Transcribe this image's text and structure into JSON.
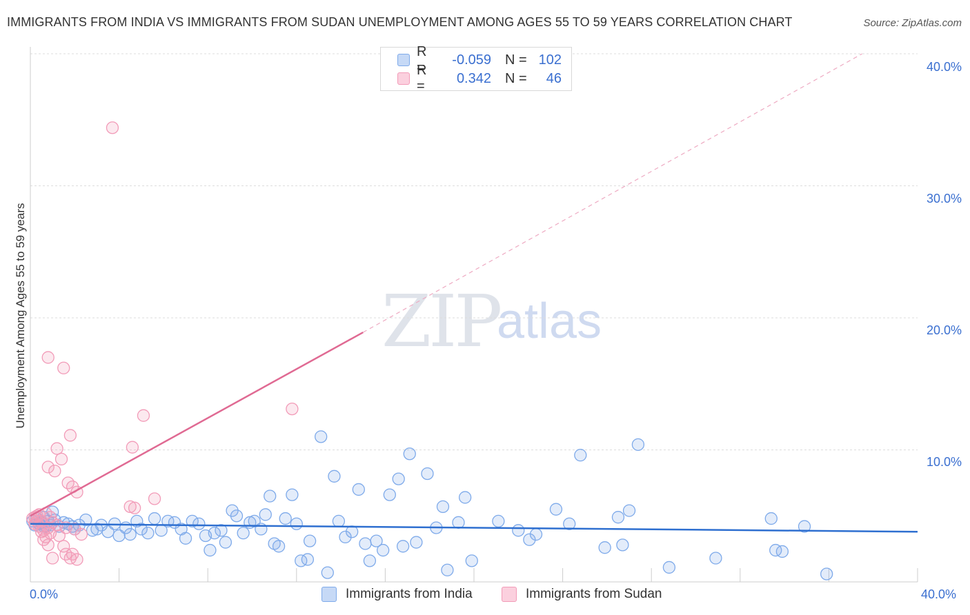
{
  "header": {
    "title": "IMMIGRANTS FROM INDIA VS IMMIGRANTS FROM SUDAN UNEMPLOYMENT AMONG AGES 55 TO 59 YEARS CORRELATION CHART",
    "source": "Source: ZipAtlas.com"
  },
  "watermark": {
    "zip": "ZIP",
    "atlas": "atlas"
  },
  "stats_legend": {
    "rows": [
      {
        "r_label": "R =",
        "r_value": "-0.059",
        "n_label": "N =",
        "n_value": "102",
        "color": "#7eaaea"
      },
      {
        "r_label": "R =",
        "r_value": "0.342",
        "n_label": "N =",
        "n_value": "46",
        "color": "#f29bb8"
      }
    ]
  },
  "chart_data": {
    "type": "scatter",
    "xlabel": "",
    "ylabel": "Unemployment Among Ages 55 to 59 years",
    "xlim": [
      0,
      40
    ],
    "ylim": [
      0,
      40
    ],
    "x_tick_labels": [
      "0.0%",
      "40.0%"
    ],
    "y_tick_labels": [
      "10.0%",
      "20.0%",
      "30.0%",
      "40.0%"
    ],
    "y_ticks": [
      10,
      20,
      30,
      40
    ],
    "grid": true,
    "legend": "bottom-center",
    "series": [
      {
        "name": "Immigrants from India",
        "color": "#7eaaea",
        "line_color": "#2e6fd0",
        "trend": {
          "x0": 0,
          "y0": 4.4,
          "x1": 40,
          "y1": 3.8
        },
        "points": [
          [
            0.1,
            4.6
          ],
          [
            0.2,
            4.3
          ],
          [
            0.3,
            4.8
          ],
          [
            0.4,
            4.4
          ],
          [
            0.5,
            4.5
          ],
          [
            0.6,
            4.9
          ],
          [
            0.7,
            4.2
          ],
          [
            0.8,
            4.6
          ],
          [
            0.9,
            4.3
          ],
          [
            1.0,
            5.3
          ],
          [
            1.1,
            4.7
          ],
          [
            1.3,
            4.2
          ],
          [
            1.5,
            4.5
          ],
          [
            1.7,
            4.4
          ],
          [
            1.9,
            4.2
          ],
          [
            2.0,
            4.0
          ],
          [
            2.2,
            4.3
          ],
          [
            2.5,
            4.7
          ],
          [
            2.8,
            3.9
          ],
          [
            3.0,
            4.0
          ],
          [
            3.2,
            4.3
          ],
          [
            3.5,
            3.8
          ],
          [
            3.8,
            4.4
          ],
          [
            4.0,
            3.5
          ],
          [
            4.3,
            4.1
          ],
          [
            4.5,
            3.6
          ],
          [
            4.8,
            4.6
          ],
          [
            5.0,
            4.0
          ],
          [
            5.3,
            3.7
          ],
          [
            5.6,
            4.8
          ],
          [
            5.9,
            3.9
          ],
          [
            6.2,
            4.6
          ],
          [
            6.5,
            4.5
          ],
          [
            6.8,
            4.0
          ],
          [
            7.0,
            3.3
          ],
          [
            7.3,
            4.6
          ],
          [
            7.6,
            4.4
          ],
          [
            7.9,
            3.5
          ],
          [
            8.1,
            2.4
          ],
          [
            8.3,
            3.7
          ],
          [
            8.6,
            3.9
          ],
          [
            8.8,
            3.0
          ],
          [
            9.1,
            5.4
          ],
          [
            9.3,
            5.0
          ],
          [
            9.6,
            3.7
          ],
          [
            9.9,
            4.5
          ],
          [
            10.1,
            4.6
          ],
          [
            10.4,
            4.0
          ],
          [
            10.6,
            5.1
          ],
          [
            10.8,
            6.5
          ],
          [
            11.0,
            2.9
          ],
          [
            11.2,
            2.7
          ],
          [
            11.5,
            4.8
          ],
          [
            11.8,
            6.6
          ],
          [
            12.0,
            4.4
          ],
          [
            12.2,
            1.6
          ],
          [
            12.5,
            1.7
          ],
          [
            12.6,
            3.1
          ],
          [
            13.1,
            11.0
          ],
          [
            13.4,
            0.7
          ],
          [
            13.7,
            8.0
          ],
          [
            13.9,
            4.6
          ],
          [
            14.2,
            3.4
          ],
          [
            14.5,
            3.8
          ],
          [
            14.8,
            7.0
          ],
          [
            15.1,
            2.9
          ],
          [
            15.3,
            1.6
          ],
          [
            15.6,
            3.1
          ],
          [
            15.9,
            2.4
          ],
          [
            16.2,
            6.6
          ],
          [
            16.6,
            7.8
          ],
          [
            16.8,
            2.7
          ],
          [
            17.1,
            9.7
          ],
          [
            17.4,
            3.0
          ],
          [
            17.9,
            8.2
          ],
          [
            18.3,
            4.1
          ],
          [
            18.6,
            5.7
          ],
          [
            18.8,
            0.9
          ],
          [
            19.3,
            4.5
          ],
          [
            19.6,
            6.4
          ],
          [
            19.9,
            1.6
          ],
          [
            21.1,
            4.6
          ],
          [
            22.0,
            3.9
          ],
          [
            22.5,
            3.2
          ],
          [
            22.8,
            3.6
          ],
          [
            23.7,
            5.5
          ],
          [
            24.3,
            4.4
          ],
          [
            24.8,
            9.6
          ],
          [
            25.9,
            2.6
          ],
          [
            26.5,
            4.9
          ],
          [
            26.7,
            2.8
          ],
          [
            27.0,
            5.4
          ],
          [
            27.4,
            10.4
          ],
          [
            28.8,
            1.1
          ],
          [
            30.9,
            1.8
          ],
          [
            33.4,
            4.8
          ],
          [
            33.6,
            2.4
          ],
          [
            33.9,
            2.3
          ],
          [
            34.9,
            4.2
          ],
          [
            35.9,
            0.6
          ],
          [
            0.4,
            4.4
          ],
          [
            0.6,
            4.2
          ]
        ]
      },
      {
        "name": "Immigrants from Sudan",
        "color": "#f29bb8",
        "line_color": "#e06a93",
        "trend": {
          "x0": 0,
          "y0": 5.0,
          "x1": 15,
          "y1": 18.9
        },
        "trend_ext": {
          "x0": 15,
          "y0": 18.9,
          "x1": 37.5,
          "y1": 40.0
        },
        "points": [
          [
            0.1,
            4.8
          ],
          [
            0.2,
            4.4
          ],
          [
            0.3,
            5.0
          ],
          [
            0.4,
            4.2
          ],
          [
            0.5,
            4.6
          ],
          [
            0.6,
            3.9
          ],
          [
            0.7,
            5.2
          ],
          [
            0.8,
            4.1
          ],
          [
            0.9,
            3.7
          ],
          [
            1.0,
            4.5
          ],
          [
            0.3,
            4.6
          ],
          [
            0.5,
            3.8
          ],
          [
            0.7,
            3.4
          ],
          [
            0.8,
            2.8
          ],
          [
            1.0,
            1.8
          ],
          [
            0.8,
            17.0
          ],
          [
            1.2,
            10.1
          ],
          [
            1.4,
            9.3
          ],
          [
            1.1,
            8.4
          ],
          [
            0.8,
            8.7
          ],
          [
            1.5,
            16.2
          ],
          [
            1.5,
            2.7
          ],
          [
            1.6,
            2.1
          ],
          [
            1.7,
            7.5
          ],
          [
            1.8,
            1.8
          ],
          [
            1.9,
            2.1
          ],
          [
            1.9,
            7.2
          ],
          [
            2.0,
            4.0
          ],
          [
            2.1,
            6.8
          ],
          [
            2.1,
            1.7
          ],
          [
            2.3,
            3.6
          ],
          [
            1.8,
            11.1
          ],
          [
            1.3,
            3.5
          ],
          [
            0.6,
            3.2
          ],
          [
            1.6,
            4.1
          ],
          [
            3.7,
            34.4
          ],
          [
            4.5,
            5.7
          ],
          [
            4.7,
            5.6
          ],
          [
            4.6,
            10.2
          ],
          [
            5.1,
            12.6
          ],
          [
            5.6,
            6.3
          ],
          [
            11.8,
            13.1
          ],
          [
            0.4,
            5.1
          ],
          [
            0.9,
            4.9
          ],
          [
            1.2,
            4.3
          ],
          [
            0.2,
            4.9
          ]
        ]
      }
    ]
  }
}
